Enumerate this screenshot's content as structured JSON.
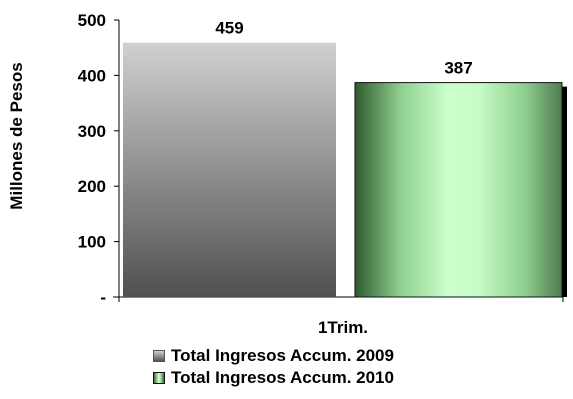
{
  "chart_data": {
    "type": "bar",
    "categories": [
      "1Trim."
    ],
    "series": [
      {
        "name": "Total Ingresos Accum. 2009",
        "values": [
          459
        ],
        "label": "459"
      },
      {
        "name": "Total Ingresos Accum. 2010",
        "values": [
          387
        ],
        "label": "387"
      }
    ],
    "ylabel": "Millones de Pesos",
    "xlabel": "",
    "ylim": [
      0,
      500
    ],
    "yticks": [
      {
        "value": 500,
        "label": "500"
      },
      {
        "value": 400,
        "label": "400"
      },
      {
        "value": 300,
        "label": "300"
      },
      {
        "value": 200,
        "label": "200"
      },
      {
        "value": 100,
        "label": "100"
      },
      {
        "value": 0,
        "label": "-"
      }
    ],
    "grid": false,
    "legend_position": "bottom",
    "colors": {
      "series_2009": "#8a8a8a",
      "series_2010": "#b8f0b8"
    }
  }
}
